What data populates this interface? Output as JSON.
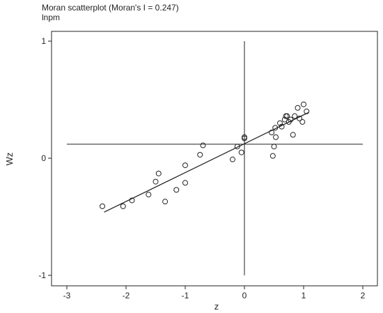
{
  "chart_data": {
    "type": "scatter",
    "title": "Moran scatterplot (Moran's I = 0.247)",
    "subtitle": "lnpm",
    "xlabel": "z",
    "ylabel": "Wz",
    "xlim": [
      -3.1,
      2.0
    ],
    "ylim": [
      -1.05,
      1.0
    ],
    "x_ticks": [
      -3,
      -2,
      -1,
      0,
      1,
      2
    ],
    "y_ticks": [
      -1,
      0,
      1
    ],
    "grid": false,
    "reference_lines": {
      "vertical_x": 0,
      "horizontal_y": 0.12
    },
    "fit_line": {
      "x": [
        -2.37,
        1.08
      ],
      "y": [
        -0.46,
        0.39
      ],
      "slope": 0.247
    },
    "points": [
      {
        "x": -2.4,
        "y": -0.41
      },
      {
        "x": -2.05,
        "y": -0.41
      },
      {
        "x": -1.9,
        "y": -0.36
      },
      {
        "x": -1.62,
        "y": -0.31
      },
      {
        "x": -1.5,
        "y": -0.2
      },
      {
        "x": -1.45,
        "y": -0.13
      },
      {
        "x": -1.34,
        "y": -0.37
      },
      {
        "x": -1.15,
        "y": -0.27
      },
      {
        "x": -1.0,
        "y": -0.21
      },
      {
        "x": -1.0,
        "y": -0.06
      },
      {
        "x": -0.75,
        "y": 0.03
      },
      {
        "x": -0.7,
        "y": 0.11
      },
      {
        "x": -0.2,
        "y": -0.01
      },
      {
        "x": -0.12,
        "y": 0.1
      },
      {
        "x": -0.05,
        "y": 0.05
      },
      {
        "x": 0.0,
        "y": 0.17
      },
      {
        "x": 0.0,
        "y": 0.18
      },
      {
        "x": 0.46,
        "y": 0.22
      },
      {
        "x": 0.48,
        "y": 0.02
      },
      {
        "x": 0.5,
        "y": 0.1
      },
      {
        "x": 0.53,
        "y": 0.18
      },
      {
        "x": 0.52,
        "y": 0.26
      },
      {
        "x": 0.6,
        "y": 0.3
      },
      {
        "x": 0.63,
        "y": 0.27
      },
      {
        "x": 0.68,
        "y": 0.33
      },
      {
        "x": 0.7,
        "y": 0.36
      },
      {
        "x": 0.72,
        "y": 0.36
      },
      {
        "x": 0.75,
        "y": 0.31
      },
      {
        "x": 0.78,
        "y": 0.33
      },
      {
        "x": 0.82,
        "y": 0.2
      },
      {
        "x": 0.85,
        "y": 0.36
      },
      {
        "x": 0.9,
        "y": 0.43
      },
      {
        "x": 0.93,
        "y": 0.34
      },
      {
        "x": 0.98,
        "y": 0.31
      },
      {
        "x": 1.0,
        "y": 0.46
      },
      {
        "x": 1.05,
        "y": 0.4
      }
    ]
  }
}
